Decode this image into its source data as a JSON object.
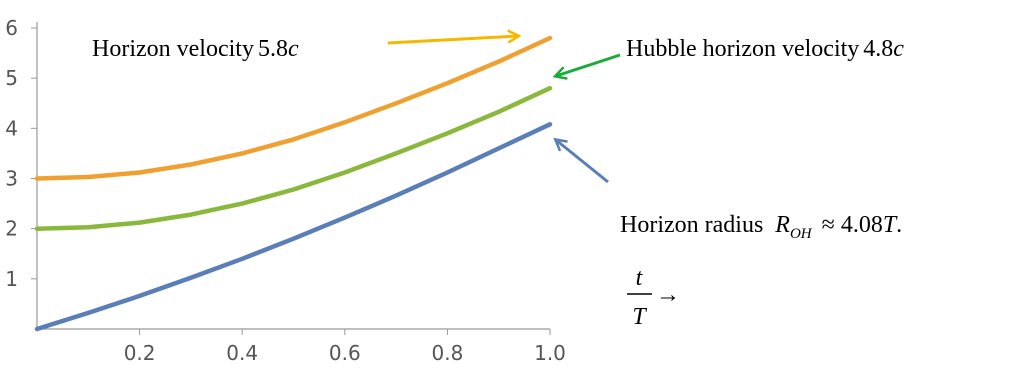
{
  "chart_data": {
    "type": "line",
    "xlim": [
      0,
      1.0
    ],
    "ylim": [
      0,
      6
    ],
    "x_ticks": [
      "0.2",
      "0.4",
      "0.6",
      "0.8",
      "1.0"
    ],
    "y_ticks": [
      "1",
      "2",
      "3",
      "4",
      "5",
      "6"
    ],
    "grid": false,
    "series": [
      {
        "color": "#F0A030",
        "x": [
          0,
          0.1,
          0.2,
          0.3,
          0.4,
          0.5,
          0.6,
          0.7,
          0.8,
          0.9,
          1.0
        ],
        "y": [
          3.0,
          3.03,
          3.12,
          3.28,
          3.5,
          3.78,
          4.12,
          4.5,
          4.9,
          5.33,
          5.8
        ]
      },
      {
        "color": "#8AB83C",
        "x": [
          0,
          0.1,
          0.2,
          0.3,
          0.4,
          0.5,
          0.6,
          0.7,
          0.8,
          0.9,
          1.0
        ],
        "y": [
          2.0,
          2.03,
          2.12,
          2.28,
          2.5,
          2.78,
          3.12,
          3.5,
          3.9,
          4.33,
          4.8
        ]
      },
      {
        "color": "#5A7EB8",
        "x": [
          0,
          0.1,
          0.2,
          0.3,
          0.4,
          0.5,
          0.6,
          0.7,
          0.8,
          0.9,
          1.0
        ],
        "y": [
          0.0,
          0.32,
          0.66,
          1.02,
          1.4,
          1.8,
          2.22,
          2.66,
          3.12,
          3.6,
          4.08
        ]
      }
    ],
    "annotations": {
      "horizon_velocity": {
        "prefix": "Horizon velocity",
        "value": "5.8",
        "unit": "c",
        "arrow_color": "#F5B800"
      },
      "hubble_velocity": {
        "prefix": "Hubble horizon velocity",
        "value": "4.8",
        "unit": "c",
        "arrow_color": "#1AAA3A"
      },
      "horizon_radius": {
        "prefix": "Horizon radius",
        "symbol": "R",
        "subscript": "OH",
        "relation": "≈ 4.08",
        "tail": "T",
        "period": ".",
        "arrow_color": "#5A7EB8"
      },
      "x_axis_hint": {
        "numerator": "t",
        "denominator": "T",
        "arrow": "→"
      }
    }
  }
}
